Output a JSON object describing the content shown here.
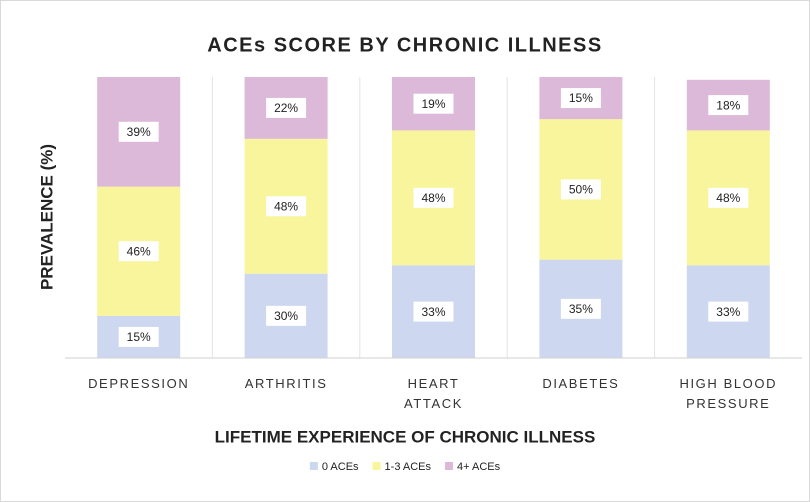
{
  "chart_data": {
    "type": "stacked-bar",
    "title": "ACEs SCORE BY CHRONIC ILLNESS",
    "x_label": "LIFETIME EXPERIENCE OF CHRONIC ILLNESS",
    "y_label": "PREVALENCE (%)",
    "categories": [
      "DEPRESSION",
      "ARTHRITIS",
      "HEART ATTACK",
      "DIABETES",
      "HIGH BLOOD PRESSURE"
    ],
    "series": [
      {
        "name": "0 ACEs",
        "color": "#cdd7ef",
        "values": [
          15,
          30,
          33,
          35,
          33
        ],
        "value_labels": [
          "15%",
          "30%",
          "33%",
          "35%",
          "33%"
        ]
      },
      {
        "name": "1-3 ACEs",
        "color": "#f8f59d",
        "values": [
          46,
          48,
          48,
          50,
          48
        ],
        "value_labels": [
          "46%",
          "48%",
          "48%",
          "50%",
          "48%"
        ]
      },
      {
        "name": "4+ ACEs",
        "color": "#dcb8d9",
        "values": [
          39,
          22,
          19,
          15,
          18
        ],
        "value_labels": [
          "39%",
          "22%",
          "19%",
          "15%",
          "18%"
        ]
      }
    ],
    "ylim": [
      0,
      100
    ],
    "legend": "bottom"
  }
}
